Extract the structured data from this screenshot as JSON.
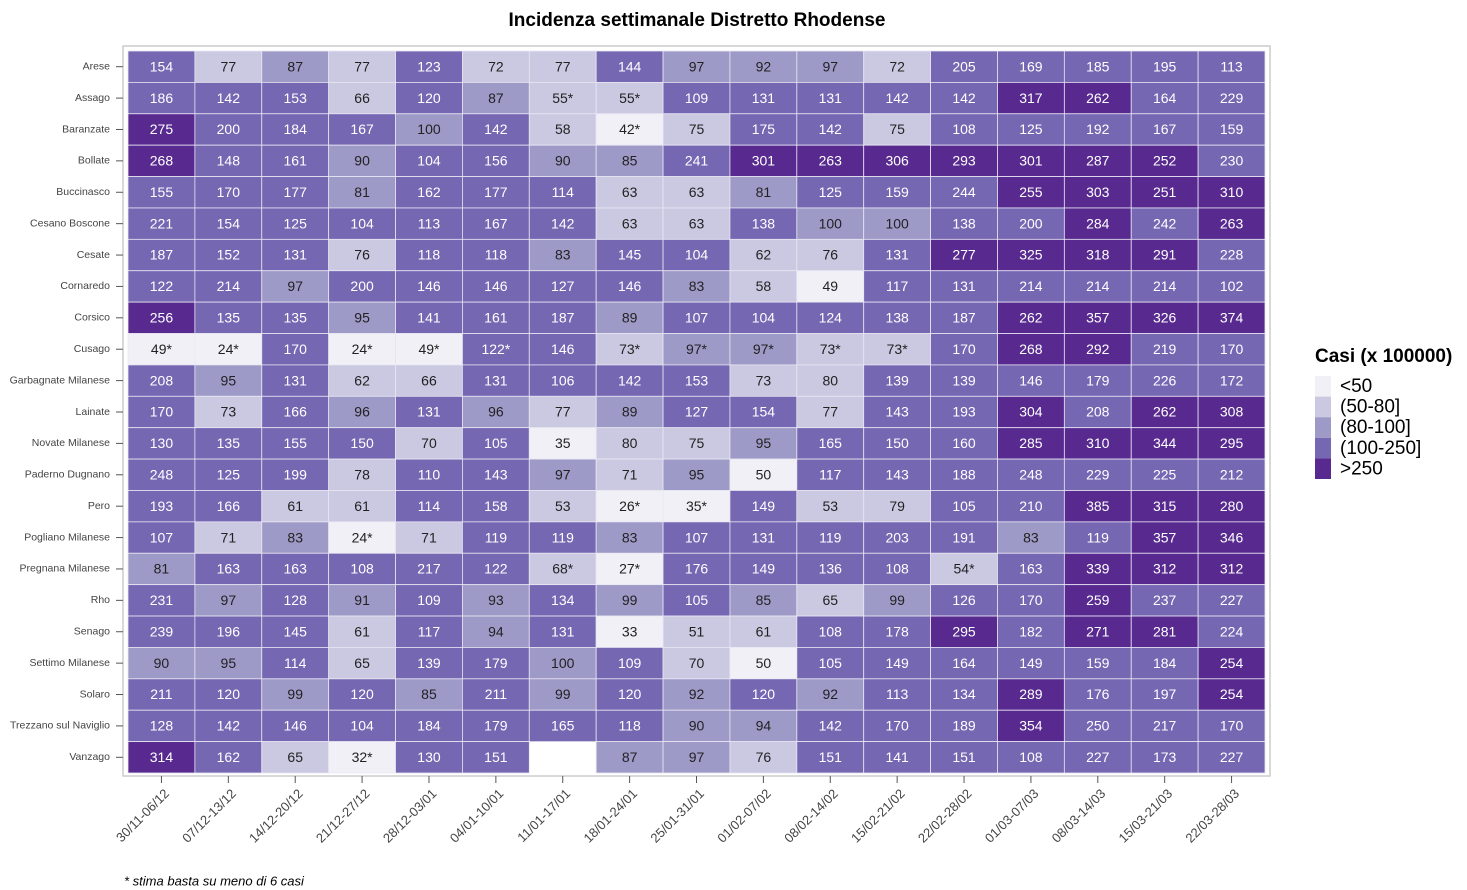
{
  "chart_data": {
    "type": "heatmap",
    "title": "Incidenza settimanale Distretto Rhodense",
    "note": "* stima basta su meno di 6 casi",
    "categories": [
      "30/11-06/12",
      "07/12-13/12",
      "14/12-20/12",
      "21/12-27/12",
      "28/12-03/01",
      "04/01-10/01",
      "11/01-17/01",
      "18/01-24/01",
      "25/01-31/01",
      "01/02-07/02",
      "08/02-14/02",
      "15/02-21/02",
      "22/02-28/02",
      "01/03-07/03",
      "08/03-14/03",
      "15/03-21/03",
      "22/03-28/03"
    ],
    "legend": {
      "title": "Casi (x 100000)",
      "labels": [
        "<50",
        "(50-80]",
        "(80-100]",
        "(100-250]",
        ">250"
      ],
      "breaks": [
        50,
        80,
        100,
        250
      ],
      "colors": [
        "#f2f0f7",
        "#cbc9e2",
        "#9e9ac8",
        "#7667b3",
        "#582a90"
      ]
    },
    "series": [
      {
        "name": "Arese",
        "values": [
          154,
          77,
          87,
          77,
          123,
          72,
          77,
          144,
          97,
          92,
          97,
          72,
          205,
          169,
          185,
          195,
          113
        ]
      },
      {
        "name": "Assago",
        "values": [
          186,
          142,
          153,
          66,
          120,
          87,
          55,
          55,
          109,
          131,
          131,
          142,
          142,
          317,
          262,
          164,
          229
        ],
        "value_labels": [
          null,
          null,
          null,
          null,
          null,
          null,
          "55*",
          "55*",
          null,
          null,
          null,
          null,
          null,
          null,
          null,
          null,
          null
        ]
      },
      {
        "name": "Baranzate",
        "values": [
          275,
          200,
          184,
          167,
          100,
          142,
          58,
          42,
          75,
          175,
          142,
          75,
          108,
          125,
          192,
          167,
          159
        ],
        "value_labels": [
          null,
          null,
          null,
          null,
          null,
          null,
          null,
          "42*",
          null,
          null,
          null,
          null,
          null,
          null,
          null,
          null,
          null
        ]
      },
      {
        "name": "Bollate",
        "values": [
          268,
          148,
          161,
          90,
          104,
          156,
          90,
          85,
          241,
          301,
          263,
          306,
          293,
          301,
          287,
          252,
          230
        ]
      },
      {
        "name": "Buccinasco",
        "values": [
          155,
          170,
          177,
          81,
          162,
          177,
          114,
          63,
          63,
          81,
          125,
          159,
          244,
          255,
          303,
          251,
          310
        ]
      },
      {
        "name": "Cesano Boscone",
        "values": [
          221,
          154,
          125,
          104,
          113,
          167,
          142,
          63,
          63,
          138,
          100,
          100,
          138,
          200,
          284,
          242,
          263
        ]
      },
      {
        "name": "Cesate",
        "values": [
          187,
          152,
          131,
          76,
          118,
          118,
          83,
          145,
          104,
          62,
          76,
          131,
          277,
          325,
          318,
          291,
          228
        ]
      },
      {
        "name": "Cornaredo",
        "values": [
          122,
          214,
          97,
          200,
          146,
          146,
          127,
          146,
          83,
          58,
          49,
          117,
          131,
          214,
          214,
          214,
          102
        ]
      },
      {
        "name": "Corsico",
        "values": [
          256,
          135,
          135,
          95,
          141,
          161,
          187,
          89,
          107,
          104,
          124,
          138,
          187,
          262,
          357,
          326,
          374
        ]
      },
      {
        "name": "Cusago",
        "values": [
          49,
          24,
          170,
          24,
          49,
          122,
          146,
          73,
          97,
          97,
          73,
          73,
          170,
          268,
          292,
          219,
          170
        ],
        "value_labels": [
          "49*",
          "24*",
          null,
          "24*",
          "49*",
          "122*",
          null,
          "73*",
          "97*",
          "97*",
          "73*",
          "73*",
          null,
          null,
          null,
          null,
          null
        ]
      },
      {
        "name": "Garbagnate Milanese",
        "values": [
          208,
          95,
          131,
          62,
          66,
          131,
          106,
          142,
          153,
          73,
          80,
          139,
          139,
          146,
          179,
          226,
          172
        ]
      },
      {
        "name": "Lainate",
        "values": [
          170,
          73,
          166,
          96,
          131,
          96,
          77,
          89,
          127,
          154,
          77,
          143,
          193,
          304,
          208,
          262,
          308
        ]
      },
      {
        "name": "Novate Milanese",
        "values": [
          130,
          135,
          155,
          150,
          70,
          105,
          35,
          80,
          75,
          95,
          165,
          150,
          160,
          285,
          310,
          344,
          295
        ]
      },
      {
        "name": "Paderno Dugnano",
        "values": [
          248,
          125,
          199,
          78,
          110,
          143,
          97,
          71,
          95,
          50,
          117,
          143,
          188,
          248,
          229,
          225,
          212
        ]
      },
      {
        "name": "Pero",
        "values": [
          193,
          166,
          61,
          61,
          114,
          158,
          53,
          26,
          35,
          149,
          53,
          79,
          105,
          210,
          385,
          315,
          280
        ],
        "value_labels": [
          null,
          null,
          null,
          null,
          null,
          null,
          null,
          "26*",
          "35*",
          null,
          null,
          null,
          null,
          null,
          null,
          null,
          null
        ]
      },
      {
        "name": "Pogliano Milanese",
        "values": [
          107,
          71,
          83,
          24,
          71,
          119,
          119,
          83,
          107,
          131,
          119,
          203,
          191,
          83,
          119,
          357,
          346
        ],
        "value_labels": [
          null,
          null,
          null,
          "24*",
          null,
          null,
          null,
          null,
          null,
          null,
          null,
          null,
          null,
          null,
          null,
          null,
          null
        ]
      },
      {
        "name": "Pregnana Milanese",
        "values": [
          81,
          163,
          163,
          108,
          217,
          122,
          68,
          27,
          176,
          149,
          136,
          108,
          54,
          163,
          339,
          312,
          312
        ],
        "value_labels": [
          null,
          null,
          null,
          null,
          null,
          null,
          "68*",
          "27*",
          null,
          null,
          null,
          null,
          "54*",
          null,
          null,
          null,
          null
        ]
      },
      {
        "name": "Rho",
        "values": [
          231,
          97,
          128,
          91,
          109,
          93,
          134,
          99,
          105,
          85,
          65,
          99,
          126,
          170,
          259,
          237,
          227
        ]
      },
      {
        "name": "Senago",
        "values": [
          239,
          196,
          145,
          61,
          117,
          94,
          131,
          33,
          51,
          61,
          108,
          178,
          295,
          182,
          271,
          281,
          224
        ]
      },
      {
        "name": "Settimo Milanese",
        "values": [
          90,
          95,
          114,
          65,
          139,
          179,
          100,
          109,
          70,
          50,
          105,
          149,
          164,
          149,
          159,
          184,
          254
        ]
      },
      {
        "name": "Solaro",
        "values": [
          211,
          120,
          99,
          120,
          85,
          211,
          99,
          120,
          92,
          120,
          92,
          113,
          134,
          289,
          176,
          197,
          254
        ]
      },
      {
        "name": "Trezzano sul Naviglio",
        "values": [
          128,
          142,
          146,
          104,
          184,
          179,
          165,
          118,
          90,
          94,
          142,
          170,
          189,
          354,
          250,
          217,
          170
        ]
      },
      {
        "name": "Vanzago",
        "values": [
          314,
          162,
          65,
          32,
          130,
          151,
          null,
          87,
          97,
          76,
          151,
          141,
          151,
          108,
          227,
          173,
          227
        ],
        "value_labels": [
          null,
          null,
          null,
          "32*",
          null,
          null,
          null,
          null,
          null,
          null,
          null,
          null,
          null,
          null,
          null,
          null,
          null
        ]
      }
    ]
  }
}
